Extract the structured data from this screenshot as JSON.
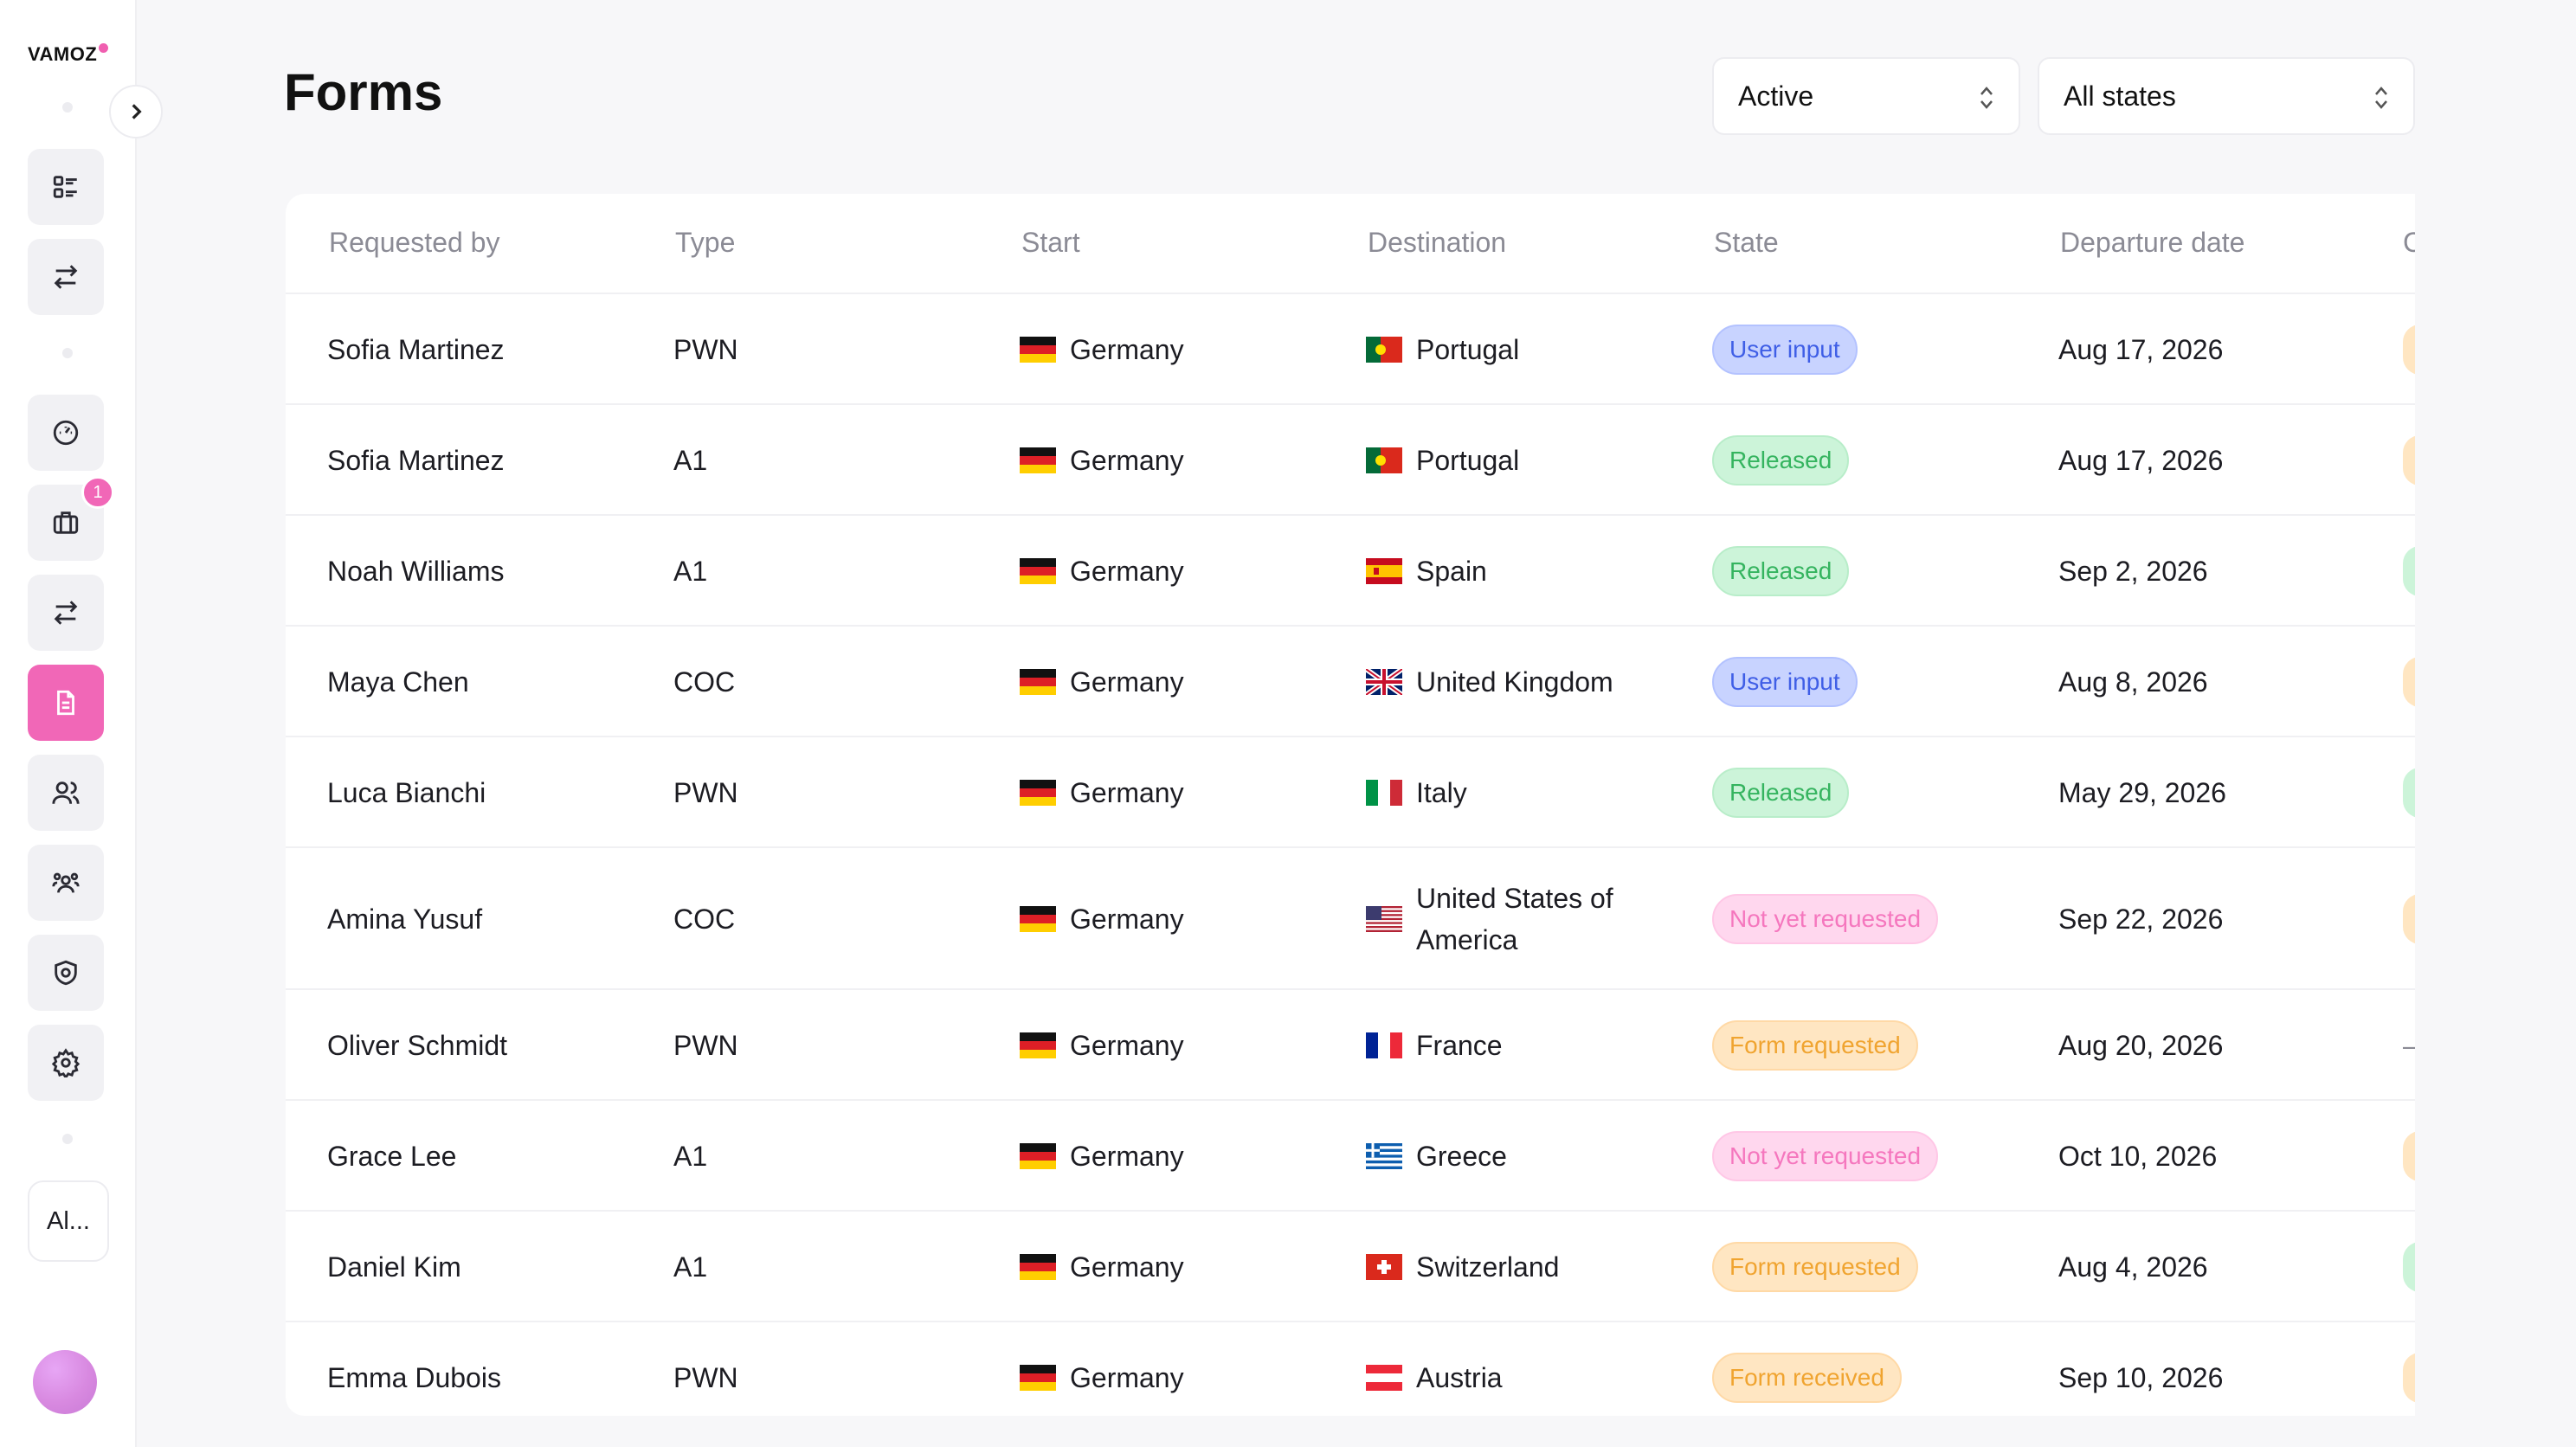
{
  "brand": {
    "logo_text": "VAMOZ",
    "accent": "#f167b7"
  },
  "sidebar": {
    "items": [
      {
        "name": "sidebar-item-dashboard",
        "icon": "list-icon"
      },
      {
        "name": "sidebar-item-transfers",
        "icon": "swap-icon"
      },
      {
        "name": "sidebar-item-performance",
        "icon": "gauge-icon"
      },
      {
        "name": "sidebar-item-trips",
        "icon": "suitcase-icon",
        "badge": "1"
      },
      {
        "name": "sidebar-item-exchange",
        "icon": "swap-icon"
      },
      {
        "name": "sidebar-item-forms",
        "icon": "document-icon",
        "active": true
      },
      {
        "name": "sidebar-item-people",
        "icon": "users-icon"
      },
      {
        "name": "sidebar-item-teams",
        "icon": "team-icon"
      },
      {
        "name": "sidebar-item-security",
        "icon": "shield-icon"
      },
      {
        "name": "sidebar-item-settings",
        "icon": "gear-icon"
      }
    ],
    "workspace_label": "Al..."
  },
  "header": {
    "title": "Forms",
    "filter_status": "Active",
    "filter_state": "All states"
  },
  "table": {
    "columns": [
      "Requested by",
      "Type",
      "Start",
      "Destination",
      "State",
      "Departure date",
      "C"
    ],
    "rows": [
      {
        "requested_by": "Sofia Martinez",
        "type": "PWN",
        "start": "Germany",
        "start_flag": "de",
        "destination": "Portugal",
        "dest_flag": "pt",
        "state": "User input",
        "state_kind": "user",
        "departure": "Aug 17, 2026",
        "extra": "orange"
      },
      {
        "requested_by": "Sofia Martinez",
        "type": "A1",
        "start": "Germany",
        "start_flag": "de",
        "destination": "Portugal",
        "dest_flag": "pt",
        "state": "Released",
        "state_kind": "released",
        "departure": "Aug 17, 2026",
        "extra": "orange"
      },
      {
        "requested_by": "Noah Williams",
        "type": "A1",
        "start": "Germany",
        "start_flag": "de",
        "destination": "Spain",
        "dest_flag": "es",
        "state": "Released",
        "state_kind": "released",
        "departure": "Sep 2, 2026",
        "extra": "green"
      },
      {
        "requested_by": "Maya Chen",
        "type": "COC",
        "start": "Germany",
        "start_flag": "de",
        "destination": "United Kingdom",
        "dest_flag": "gb",
        "state": "User input",
        "state_kind": "user",
        "departure": "Aug 8, 2026",
        "extra": "orange"
      },
      {
        "requested_by": "Luca Bianchi",
        "type": "PWN",
        "start": "Germany",
        "start_flag": "de",
        "destination": "Italy",
        "dest_flag": "it",
        "state": "Released",
        "state_kind": "released",
        "departure": "May 29, 2026",
        "extra": "green"
      },
      {
        "requested_by": "Amina Yusuf",
        "type": "COC",
        "start": "Germany",
        "start_flag": "de",
        "destination": "United States of America",
        "dest_flag": "us",
        "state": "Not yet requested",
        "state_kind": "notyet",
        "departure": "Sep 22, 2026",
        "extra": "orange"
      },
      {
        "requested_by": "Oliver Schmidt",
        "type": "PWN",
        "start": "Germany",
        "start_flag": "de",
        "destination": "France",
        "dest_flag": "fr",
        "state": "Form requested",
        "state_kind": "formreq",
        "departure": "Aug 20, 2026",
        "extra": "dash"
      },
      {
        "requested_by": "Grace Lee",
        "type": "A1",
        "start": "Germany",
        "start_flag": "de",
        "destination": "Greece",
        "dest_flag": "gr",
        "state": "Not yet requested",
        "state_kind": "notyet",
        "departure": "Oct 10, 2026",
        "extra": "orange"
      },
      {
        "requested_by": "Daniel Kim",
        "type": "A1",
        "start": "Germany",
        "start_flag": "de",
        "destination": "Switzerland",
        "dest_flag": "ch",
        "state": "Form requested",
        "state_kind": "formreq",
        "departure": "Aug 4, 2026",
        "extra": "green"
      },
      {
        "requested_by": "Emma Dubois",
        "type": "PWN",
        "start": "Germany",
        "start_flag": "de",
        "destination": "Austria",
        "dest_flag": "at",
        "state": "Form received",
        "state_kind": "formrec",
        "departure": "Sep 10, 2026",
        "extra": "orange"
      }
    ]
  }
}
